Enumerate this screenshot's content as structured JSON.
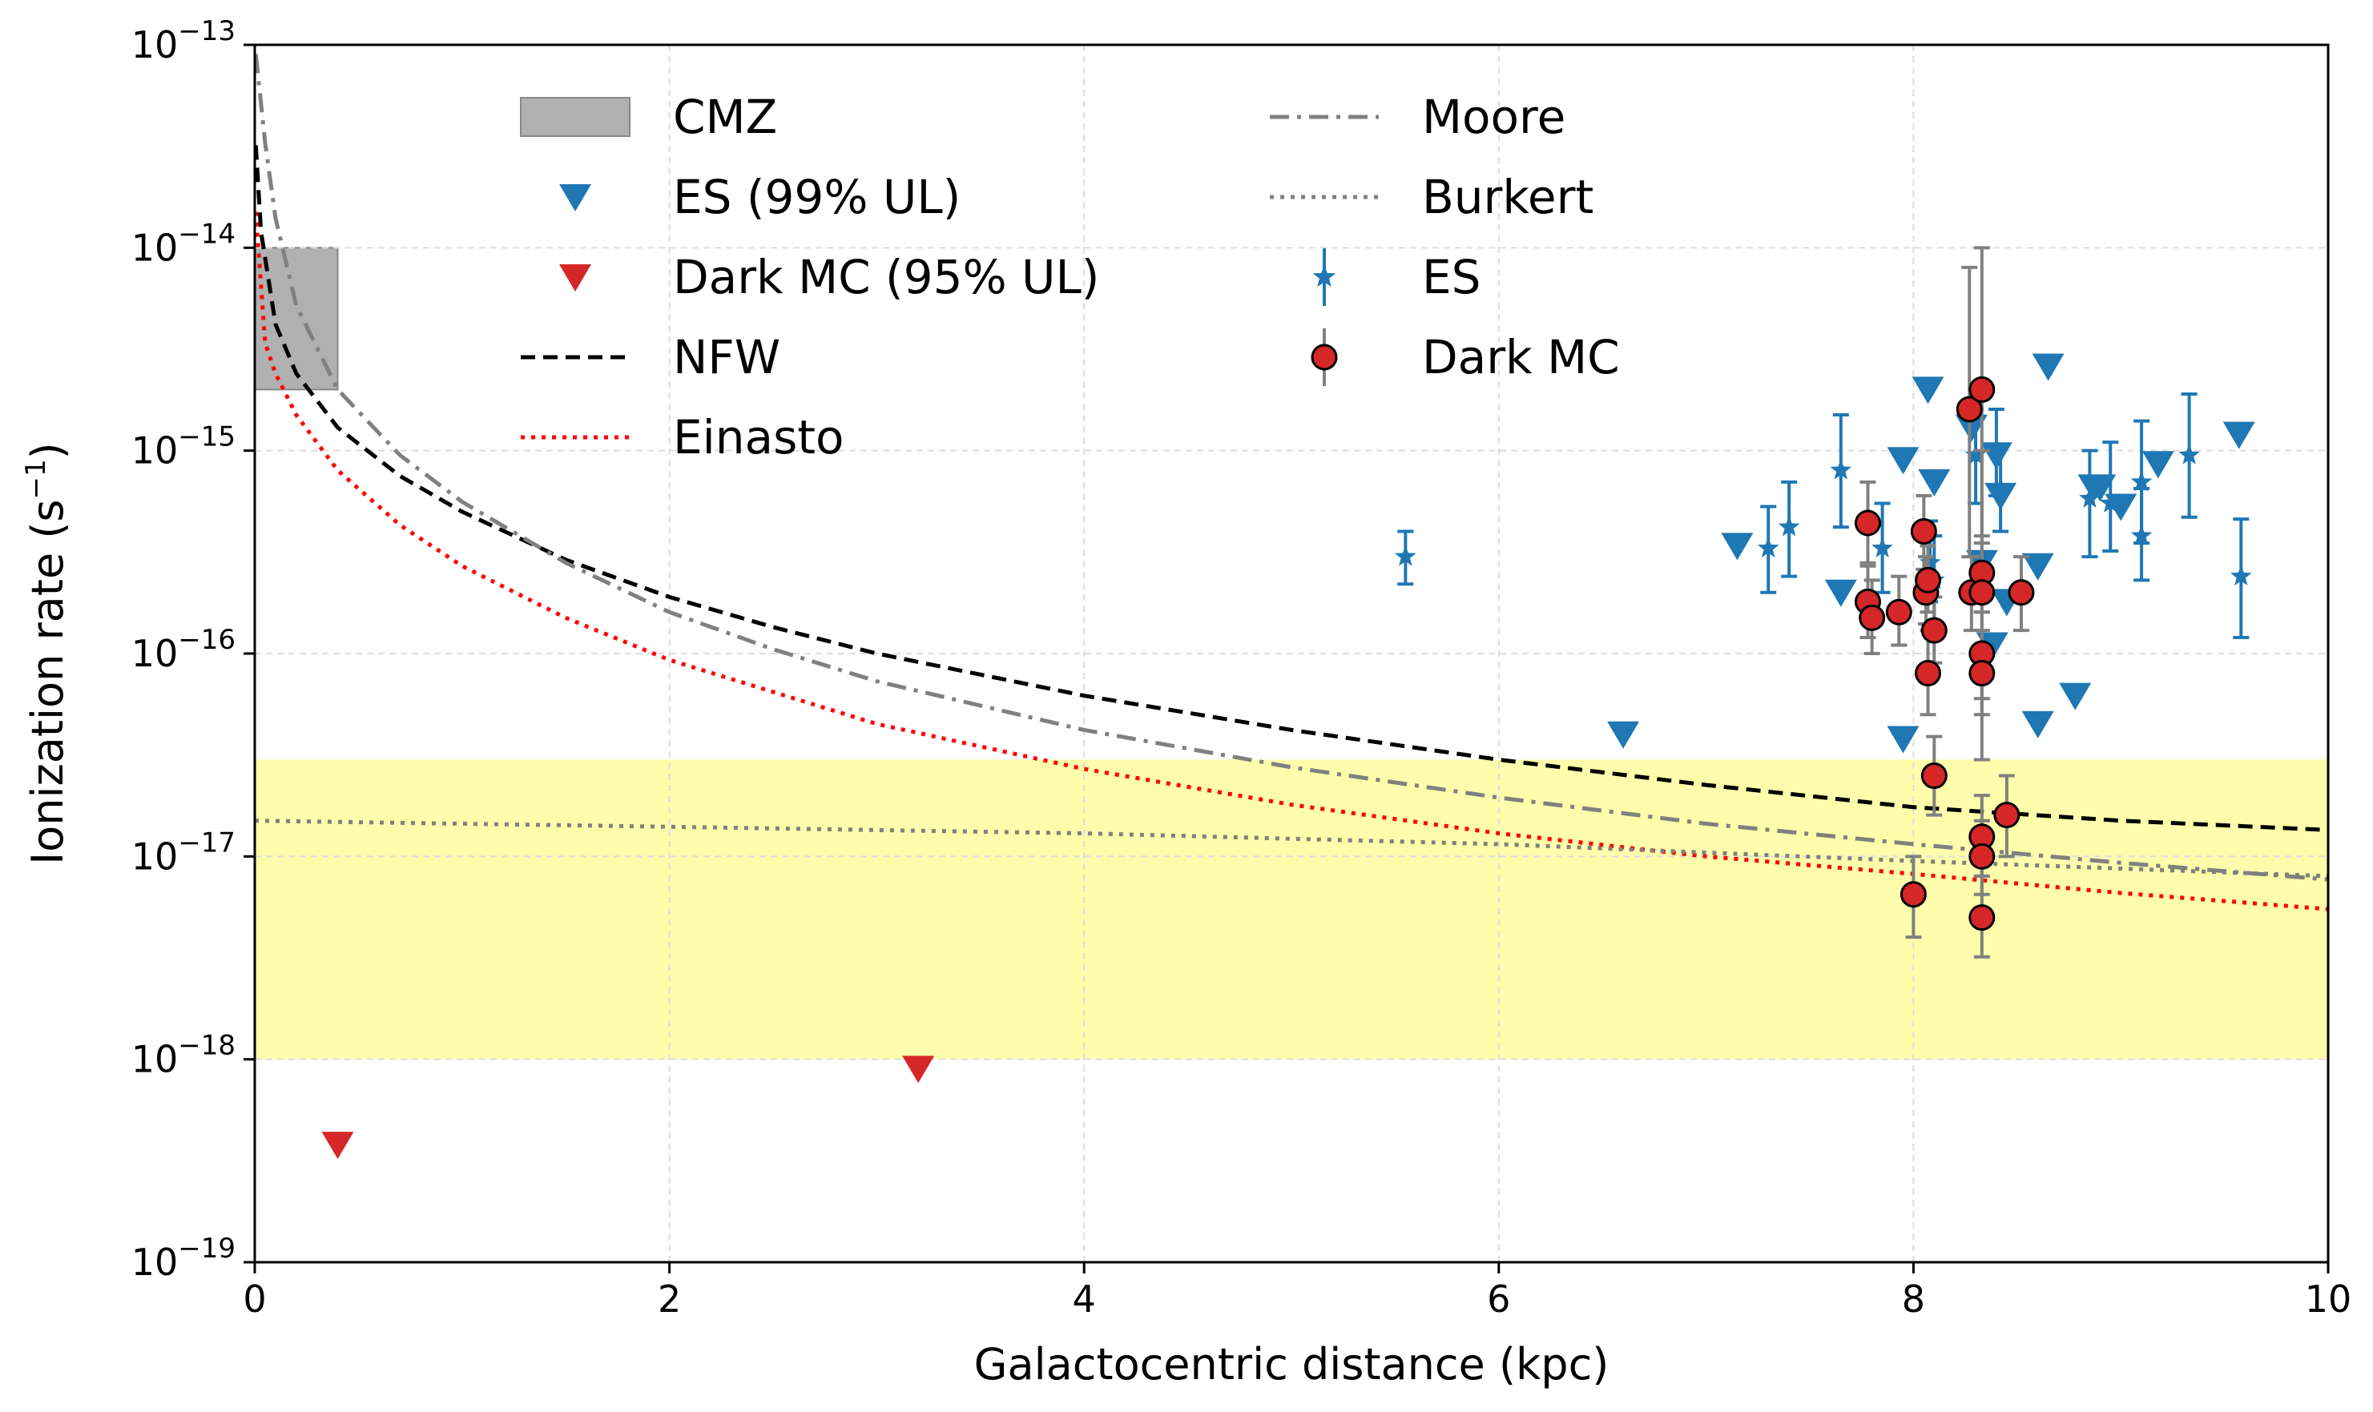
{
  "chart_data": {
    "type": "scatter",
    "xlabel": "Galactocentric distance (kpc)",
    "ylabel": "Ionization rate (s",
    "ylabel_unit_exp": "−1",
    "ylabel_close": ")",
    "xlim": [
      0,
      10
    ],
    "ylim_log10": [
      -19,
      -13
    ],
    "yscale": "log",
    "grid": true,
    "legend_location": "upper center",
    "x_ticks": [
      "0",
      "2",
      "4",
      "6",
      "8",
      "10"
    ],
    "x_tick_values": [
      0,
      2,
      4,
      6,
      8,
      10
    ],
    "y_ticks": [
      {
        "exp": -19,
        "base": "10",
        "power": "−19"
      },
      {
        "exp": -18,
        "base": "10",
        "power": "−18"
      },
      {
        "exp": -17,
        "base": "10",
        "power": "−17"
      },
      {
        "exp": -16,
        "base": "10",
        "power": "−16"
      },
      {
        "exp": -15,
        "base": "10",
        "power": "−15"
      },
      {
        "exp": -14,
        "base": "10",
        "power": "−14"
      },
      {
        "exp": -13,
        "base": "10",
        "power": "−13"
      }
    ],
    "shaded_band": {
      "y_range": [
        1e-18,
        3e-17
      ],
      "color": "#fdfdab"
    },
    "cmz_region": {
      "x_range": [
        0,
        0.4
      ],
      "y_range": [
        2e-15,
        1e-14
      ],
      "color": "#b0b0b0"
    },
    "legend": [
      {
        "label": "CMZ",
        "kind": "patch",
        "color": "#b0b0b0"
      },
      {
        "label": "ES (99% UL)",
        "kind": "triangle",
        "color": "#1f77b4"
      },
      {
        "label": "Dark MC (95% UL)",
        "kind": "triangle",
        "color": "#d62728"
      },
      {
        "label": "NFW",
        "kind": "line",
        "color": "#000000",
        "dash": "dashed"
      },
      {
        "label": "Einasto",
        "kind": "line",
        "color": "#ff0000",
        "dash": "dotted"
      },
      {
        "label": "Moore",
        "kind": "line",
        "color": "#808080",
        "dash": "dashdot"
      },
      {
        "label": "Burkert",
        "kind": "line",
        "color": "#808080",
        "dash": "dotted"
      },
      {
        "label": "ES",
        "kind": "star",
        "color": "#1f77b4"
      },
      {
        "label": "Dark MC",
        "kind": "circle",
        "color": "#d62728"
      }
    ],
    "curves": [
      {
        "name": "NFW",
        "color": "#000000",
        "dash": "dashed",
        "points": [
          [
            0.005,
            3.2e-14
          ],
          [
            0.03,
            1.2e-14
          ],
          [
            0.1,
            4.2e-15
          ],
          [
            0.2,
            2.4e-15
          ],
          [
            0.4,
            1.3e-15
          ],
          [
            0.7,
            7.5e-16
          ],
          [
            1,
            5e-16
          ],
          [
            1.5,
            2.9e-16
          ],
          [
            2,
            1.9e-16
          ],
          [
            2.5,
            1.35e-16
          ],
          [
            3,
            1e-16
          ],
          [
            4,
            6.2e-17
          ],
          [
            5,
            4.2e-17
          ],
          [
            6,
            3e-17
          ],
          [
            7,
            2.25e-17
          ],
          [
            8,
            1.75e-17
          ],
          [
            9,
            1.5e-17
          ],
          [
            10,
            1.35e-17
          ]
        ]
      },
      {
        "name": "Einasto",
        "color": "#ff0000",
        "dash": "dotted",
        "points": [
          [
            0.005,
            1.5e-14
          ],
          [
            0.05,
            3.4e-15
          ],
          [
            0.1,
            2.4e-15
          ],
          [
            0.2,
            1.5e-15
          ],
          [
            0.4,
            8e-16
          ],
          [
            0.7,
            4.3e-16
          ],
          [
            1,
            2.7e-16
          ],
          [
            1.5,
            1.5e-16
          ],
          [
            2,
            9.3e-17
          ],
          [
            3,
            4.5e-17
          ],
          [
            4,
            2.7e-17
          ],
          [
            5,
            1.8e-17
          ],
          [
            6,
            1.3e-17
          ],
          [
            7,
            1e-17
          ],
          [
            8,
            8.2e-18
          ],
          [
            9,
            6.6e-18
          ],
          [
            10,
            5.5e-18
          ]
        ]
      },
      {
        "name": "Moore",
        "color": "#808080",
        "dash": "dashdot",
        "points": [
          [
            0.005,
            9e-14
          ],
          [
            0.05,
            3.3e-14
          ],
          [
            0.1,
            1.4e-14
          ],
          [
            0.2,
            5.2e-15
          ],
          [
            0.4,
            2e-15
          ],
          [
            0.7,
            9.5e-16
          ],
          [
            1,
            5.6e-16
          ],
          [
            1.5,
            2.8e-16
          ],
          [
            2,
            1.6e-16
          ],
          [
            2.5,
            1.05e-16
          ],
          [
            3,
            7.3e-17
          ],
          [
            4,
            4.2e-17
          ],
          [
            5,
            2.75e-17
          ],
          [
            6,
            1.95e-17
          ],
          [
            7,
            1.45e-17
          ],
          [
            8,
            1.15e-17
          ],
          [
            9,
            9.3e-18
          ],
          [
            10,
            7.7e-18
          ]
        ]
      },
      {
        "name": "Burkert",
        "color": "#808080",
        "dash": "dotted",
        "points": [
          [
            0,
            1.5e-17
          ],
          [
            2,
            1.4e-17
          ],
          [
            4,
            1.3e-17
          ],
          [
            6,
            1.15e-17
          ],
          [
            8,
            9.5e-18
          ],
          [
            10,
            8e-18
          ]
        ]
      }
    ],
    "series": [
      {
        "name": "ES (99% UL)",
        "marker": "triangle",
        "color": "#1f77b4",
        "points": [
          [
            6.6,
            4e-17
          ],
          [
            7.15,
            3.4e-16
          ],
          [
            7.65,
            2e-16
          ],
          [
            7.95,
            9e-16
          ],
          [
            7.95,
            3.8e-17
          ],
          [
            8.07,
            2e-15
          ],
          [
            8.1,
            7e-16
          ],
          [
            8.28,
            1.3e-15
          ],
          [
            8.33,
            2.8e-16
          ],
          [
            8.38,
            1.1e-16
          ],
          [
            8.4,
            9.5e-16
          ],
          [
            8.42,
            6e-16
          ],
          [
            8.45,
            1.8e-16
          ],
          [
            8.6,
            2.7e-16
          ],
          [
            8.6,
            4.5e-17
          ],
          [
            8.65,
            2.6e-15
          ],
          [
            8.78,
            6.2e-17
          ],
          [
            8.87,
            6.6e-16
          ],
          [
            8.9,
            6.6e-16
          ],
          [
            9,
            5.3e-16
          ],
          [
            9.18,
            8.6e-16
          ],
          [
            9.57,
            1.2e-15
          ]
        ]
      },
      {
        "name": "Dark MC (95% UL)",
        "marker": "triangle",
        "color": "#d62728",
        "points": [
          [
            0.4,
            3.8e-19
          ],
          [
            3.2,
            9e-19
          ]
        ]
      },
      {
        "name": "ES",
        "marker": "star",
        "color": "#1f77b4",
        "points": [
          {
            "x": 5.55,
            "y": 3e-16,
            "lo": 2.2e-16,
            "hi": 4e-16
          },
          {
            "x": 7.3,
            "y": 3.3e-16,
            "lo": 2e-16,
            "hi": 5.3e-16
          },
          {
            "x": 7.4,
            "y": 4.2e-16,
            "lo": 2.4e-16,
            "hi": 7e-16
          },
          {
            "x": 7.65,
            "y": 8e-16,
            "lo": 4.2e-16,
            "hi": 1.5e-15
          },
          {
            "x": 7.85,
            "y": 3.3e-16,
            "lo": 2e-16,
            "hi": 5.5e-16
          },
          {
            "x": 8.08,
            "y": 2.8e-16,
            "lo": 1.8e-16,
            "hi": 4.5e-16
          },
          {
            "x": 8.1,
            "y": 2.3e-16,
            "lo": 1.4e-16,
            "hi": 3.8e-16
          },
          {
            "x": 8.3,
            "y": 9.5e-16,
            "lo": 5.5e-16,
            "hi": 1.6e-15
          },
          {
            "x": 8.4,
            "y": 1e-15,
            "lo": 6e-16,
            "hi": 1.6e-15
          },
          {
            "x": 8.42,
            "y": 6.5e-16,
            "lo": 4e-16,
            "hi": 1.05e-15
          },
          {
            "x": 8.85,
            "y": 5.8e-16,
            "lo": 3e-16,
            "hi": 1e-15
          },
          {
            "x": 8.95,
            "y": 5.5e-16,
            "lo": 3.2e-16,
            "hi": 1.1e-15
          },
          {
            "x": 9.1,
            "y": 3.8e-16,
            "lo": 2.3e-16,
            "hi": 6.5e-16
          },
          {
            "x": 9.1,
            "y": 7e-16,
            "lo": 3.5e-16,
            "hi": 1.4e-15
          },
          {
            "x": 9.33,
            "y": 9.5e-16,
            "lo": 4.7e-16,
            "hi": 1.9e-15
          },
          {
            "x": 9.58,
            "y": 2.4e-16,
            "lo": 1.2e-16,
            "hi": 4.6e-16
          }
        ]
      },
      {
        "name": "Dark MC",
        "marker": "circle",
        "color": "#d62728",
        "points": [
          {
            "x": 7.78,
            "y": 4.4e-16,
            "lo": 2.8e-16,
            "hi": 7e-16
          },
          {
            "x": 7.78,
            "y": 1.8e-16,
            "lo": 1.2e-16,
            "hi": 2.7e-16
          },
          {
            "x": 7.8,
            "y": 1.5e-16,
            "lo": 1e-16,
            "hi": 2.3e-16
          },
          {
            "x": 7.93,
            "y": 1.6e-16,
            "lo": 1.1e-16,
            "hi": 2.4e-16
          },
          {
            "x": 8,
            "y": 6.5e-18,
            "lo": 4e-18,
            "hi": 1e-17
          },
          {
            "x": 8.05,
            "y": 4e-16,
            "lo": 2.6e-16,
            "hi": 6e-16
          },
          {
            "x": 8.06,
            "y": 2e-16,
            "lo": 1.4e-16,
            "hi": 3e-16
          },
          {
            "x": 8.07,
            "y": 2.3e-16,
            "lo": 1.6e-16,
            "hi": 3.4e-16
          },
          {
            "x": 8.07,
            "y": 8e-17,
            "lo": 5e-17,
            "hi": 1.3e-16
          },
          {
            "x": 8.1,
            "y": 1.3e-16,
            "lo": 9e-17,
            "hi": 1.9e-16
          },
          {
            "x": 8.1,
            "y": 2.5e-17,
            "lo": 1.6e-17,
            "hi": 3.9e-17
          },
          {
            "x": 8.27,
            "y": 1.6e-15,
            "lo": 3e-16,
            "hi": 8e-15
          },
          {
            "x": 8.28,
            "y": 2e-16,
            "lo": 1.3e-16,
            "hi": 3e-16
          },
          {
            "x": 8.33,
            "y": 2e-15,
            "lo": 3.5e-16,
            "hi": 1e-14
          },
          {
            "x": 8.33,
            "y": 2.5e-16,
            "lo": 1.6e-16,
            "hi": 3.8e-16
          },
          {
            "x": 8.33,
            "y": 2e-16,
            "lo": 3e-17,
            "hi": 1e-15
          },
          {
            "x": 8.33,
            "y": 1e-16,
            "lo": 6e-17,
            "hi": 1.6e-16
          },
          {
            "x": 8.33,
            "y": 8e-17,
            "lo": 5e-17,
            "hi": 1.3e-16
          },
          {
            "x": 8.33,
            "y": 1.25e-17,
            "lo": 8e-18,
            "hi": 2e-17
          },
          {
            "x": 8.33,
            "y": 1e-17,
            "lo": 6.5e-18,
            "hi": 1.5e-17
          },
          {
            "x": 8.33,
            "y": 5e-18,
            "lo": 3.2e-18,
            "hi": 8e-18
          },
          {
            "x": 8.45,
            "y": 1.6e-17,
            "lo": 1e-17,
            "hi": 2.5e-17
          },
          {
            "x": 8.52,
            "y": 2e-16,
            "lo": 1.3e-16,
            "hi": 3e-16
          }
        ]
      }
    ]
  }
}
